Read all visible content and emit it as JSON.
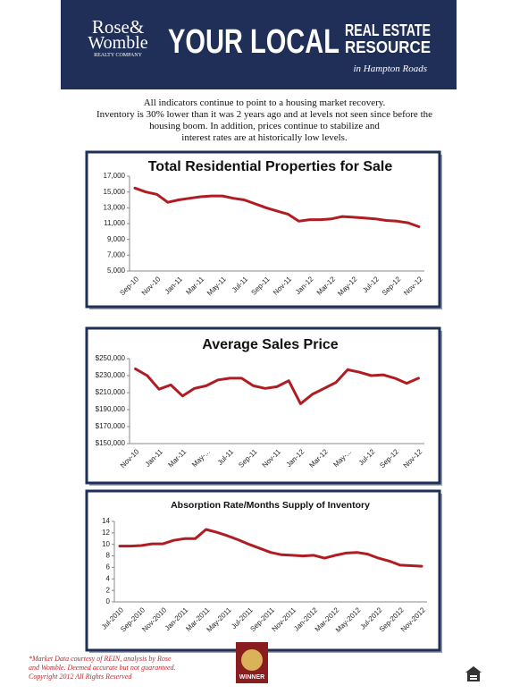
{
  "header": {
    "logo_top": "Rose&",
    "logo_bottom": "Womble",
    "logo_sub": "REALTY COMPANY",
    "headline": "YOUR LOCAL",
    "headline_right_1": "REAL ESTATE",
    "headline_right_2": "RESOURCE",
    "tagline": "in Hampton Roads"
  },
  "intro": [
    "All indicators continue to point to a housing market recovery.",
    "Inventory is 30% lower than it was 2 years ago and at levels not seen since before the",
    "housing boom.  In addition, prices continue to stabilize and",
    "interest rates are at historically low levels."
  ],
  "chart_data": [
    {
      "type": "line",
      "title": "Total Residential Properties for Sale",
      "categories": [
        "Sep-10",
        null,
        "Nov-10",
        null,
        "Jan-11",
        null,
        "Mar-11",
        null,
        "May-11",
        null,
        "Jul-11",
        null,
        "Sep-11",
        null,
        "Nov-11",
        null,
        "Jan-12",
        null,
        "Mar-12",
        null,
        "May-12",
        null,
        "Jul-12",
        null,
        "Sep-12",
        null,
        "Nov-12"
      ],
      "values": [
        15500,
        15000,
        14700,
        13700,
        14000,
        14200,
        14400,
        14500,
        14500,
        14200,
        14000,
        13500,
        13000,
        12600,
        12200,
        11300,
        11500,
        11500,
        11600,
        11900,
        11800,
        11700,
        11600,
        11400,
        11300,
        11100,
        10600
      ],
      "color": "#b01c22",
      "grid": false,
      "ylim": [
        5000,
        17000
      ],
      "yticks": [
        {
          "value": 5000,
          "label": "5,000"
        },
        {
          "value": 7000,
          "label": "7,000"
        },
        {
          "value": 9000,
          "label": "9,000"
        },
        {
          "value": 11000,
          "label": "11,000"
        },
        {
          "value": 13000,
          "label": "13,000"
        },
        {
          "value": 15000,
          "label": "15,000"
        },
        {
          "value": 17000,
          "label": "17,000"
        }
      ]
    },
    {
      "type": "line",
      "title": "Average Sales Price",
      "categories": [
        "Nov-10",
        null,
        "Jan-11",
        null,
        "Mar-11",
        null,
        "May-...",
        null,
        "Jul-11",
        null,
        "Sep-11",
        null,
        "Nov-11",
        null,
        "Jan-12",
        null,
        "Mar-12",
        null,
        "May-...",
        null,
        "Jul-12",
        null,
        "Sep-12",
        null,
        "Nov-12"
      ],
      "values": [
        238000,
        230000,
        214000,
        219000,
        206000,
        215000,
        218000,
        225000,
        227000,
        227000,
        218000,
        215000,
        217000,
        224000,
        197000,
        208000,
        215000,
        222000,
        237000,
        234000,
        230000,
        231000,
        227000,
        221000,
        227000
      ],
      "color": "#b01c22",
      "grid": false,
      "ylim": [
        150000,
        250000
      ],
      "yticks": [
        {
          "value": 150000,
          "label": "$150,000"
        },
        {
          "value": 170000,
          "label": "$170,000"
        },
        {
          "value": 190000,
          "label": "$190,000"
        },
        {
          "value": 210000,
          "label": "$210,000"
        },
        {
          "value": 230000,
          "label": "$230,000"
        },
        {
          "value": 250000,
          "label": "$250,000"
        }
      ]
    },
    {
      "type": "line",
      "title": "Absorption Rate/Months Supply of Inventory",
      "categories": [
        "Jul-2010",
        null,
        "Sep-2010",
        null,
        "Nov-2010",
        null,
        "Jan-2011",
        null,
        "Mar-2011",
        null,
        "May-2011",
        null,
        "Jul-2011",
        null,
        "Sep-2011",
        null,
        "Nov-2011",
        null,
        "Jan-2012",
        null,
        "Mar-2012",
        null,
        "May-2012",
        null,
        "Jul-2012",
        null,
        "Sep-2012",
        null,
        "Nov-2012"
      ],
      "values": [
        9.7,
        9.7,
        9.8,
        10.1,
        10.1,
        10.7,
        11.0,
        11.0,
        12.6,
        12.1,
        11.5,
        10.8,
        10.0,
        9.3,
        8.6,
        8.2,
        8.1,
        8.0,
        8.1,
        7.6,
        8.1,
        8.5,
        8.6,
        8.3,
        7.6,
        7.1,
        6.4,
        6.3,
        6.2
      ],
      "color": "#b01c22",
      "grid": false,
      "ylim": [
        0,
        14
      ],
      "yticks": [
        0,
        2,
        4,
        6,
        8,
        10,
        12,
        14
      ]
    }
  ],
  "footer": [
    "*Market Data courtesy of REIN, analysis by Rose",
    "and Womble. Deemed accurate but not guaranteed.",
    "Copyright 2012 All Rights Reserved"
  ],
  "badge": "WINNER"
}
